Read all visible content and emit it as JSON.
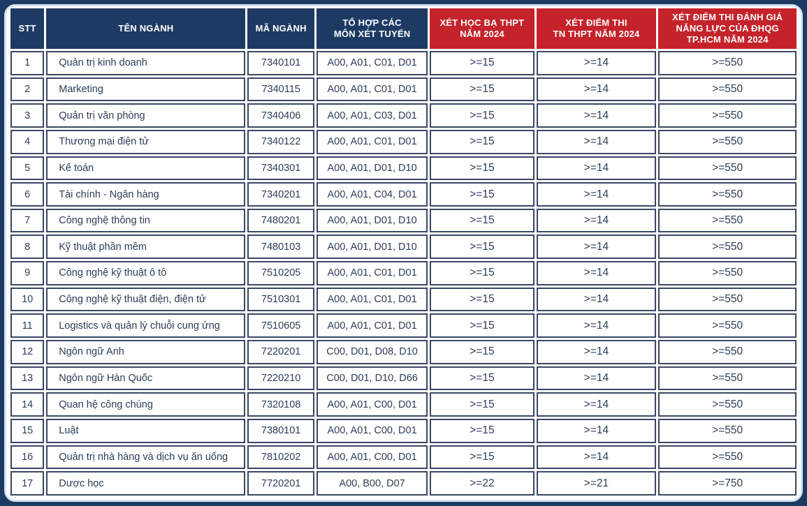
{
  "colors": {
    "navy_header": "#1d3a63",
    "red_header": "#c4232b",
    "cell_border": "#3a4764",
    "body_text": "#2e3c58",
    "frame_ring": "#d4e4f2",
    "cell_background": "#ffffff"
  },
  "chart_data": {
    "type": "table",
    "columns": [
      {
        "id": "stt",
        "label": "STT",
        "header_color": "navy"
      },
      {
        "id": "ten_nganh",
        "label": "TÊN NGÀNH",
        "header_color": "navy"
      },
      {
        "id": "ma_nganh",
        "label": "MÃ NGÀNH",
        "header_color": "navy"
      },
      {
        "id": "to_hop",
        "label": "TỔ HỢP CÁC\nMÔN XÉT TUYỂN",
        "header_color": "navy"
      },
      {
        "id": "hoc_ba",
        "label": "XÉT HỌC BẠ THPT\nNĂM 2024",
        "header_color": "red"
      },
      {
        "id": "tn_thpt",
        "label": "XÉT ĐIỂM THI\nTN THPT NĂM 2024",
        "header_color": "red"
      },
      {
        "id": "dgnl",
        "label": "XÉT ĐIỂM THI ĐÁNH GIÁ\nNĂNG LỰC CỦA ĐHQG\nTP.HCM NĂM 2024",
        "header_color": "red"
      }
    ],
    "rows": [
      [
        "1",
        "Quản trị kinh doanh",
        "7340101",
        "A00, A01, C01, D01",
        ">=15",
        ">=14",
        ">=550"
      ],
      [
        "2",
        "Marketing",
        "7340115",
        "A00, A01, C01, D01",
        ">=15",
        ">=14",
        ">=550"
      ],
      [
        "3",
        "Quản trị văn phòng",
        "7340406",
        "A00, A01, C03, D01",
        ">=15",
        ">=14",
        ">=550"
      ],
      [
        "4",
        "Thương mại điện tử",
        "7340122",
        "A00, A01, C01, D01",
        ">=15",
        ">=14",
        ">=550"
      ],
      [
        "5",
        "Kế toán",
        "7340301",
        "A00, A01, D01, D10",
        ">=15",
        ">=14",
        ">=550"
      ],
      [
        "6",
        "Tài chính - Ngân hàng",
        "7340201",
        "A00, A01, C04, D01",
        ">=15",
        ">=14",
        ">=550"
      ],
      [
        "7",
        "Công nghệ thông tin",
        "7480201",
        "A00, A01, D01, D10",
        ">=15",
        ">=14",
        ">=550"
      ],
      [
        "8",
        "Kỹ thuật phần mềm",
        "7480103",
        "A00, A01, D01, D10",
        ">=15",
        ">=14",
        ">=550"
      ],
      [
        "9",
        "Công nghệ kỹ thuật ô tô",
        "7510205",
        "A00, A01, C01, D01",
        ">=15",
        ">=14",
        ">=550"
      ],
      [
        "10",
        "Công nghệ kỹ thuật điện, điện tử",
        "7510301",
        "A00, A01, C01, D01",
        ">=15",
        ">=14",
        ">=550"
      ],
      [
        "11",
        "Logistics và quản lý chuỗi cung ứng",
        "7510605",
        "A00, A01, C01, D01",
        ">=15",
        ">=14",
        ">=550"
      ],
      [
        "12",
        "Ngôn ngữ Anh",
        "7220201",
        "C00, D01, D08, D10",
        ">=15",
        ">=14",
        ">=550"
      ],
      [
        "13",
        "Ngôn ngữ Hàn Quốc",
        "7220210",
        "C00, D01, D10, D66",
        ">=15",
        ">=14",
        ">=550"
      ],
      [
        "14",
        "Quan hệ công chúng",
        "7320108",
        "A00, A01, C00, D01",
        ">=15",
        ">=14",
        ">=550"
      ],
      [
        "15",
        "Luật",
        "7380101",
        "A00, A01, C00, D01",
        ">=15",
        ">=14",
        ">=550"
      ],
      [
        "16",
        "Quản trị nhà hàng và dịch vụ ăn uống",
        "7810202",
        "A00, A01, C00, D01",
        ">=15",
        ">=14",
        ">=550"
      ],
      [
        "17",
        "Dược học",
        "7720201",
        "A00, B00, D07",
        ">=22",
        ">=21",
        ">=750"
      ]
    ]
  }
}
